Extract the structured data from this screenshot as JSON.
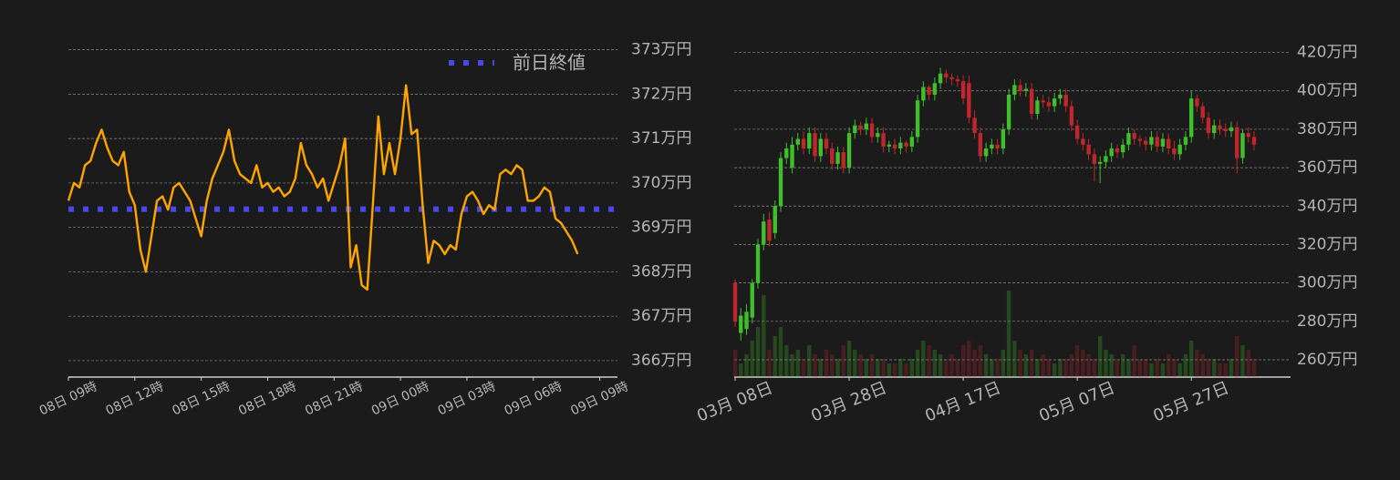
{
  "chart_data": [
    {
      "type": "line",
      "color": "#ffa500",
      "grid": true,
      "legend": "upper right",
      "x": [
        0,
        0.25,
        0.5,
        0.75,
        1,
        1.25,
        1.5,
        1.75,
        2,
        2.25,
        2.5,
        2.75,
        3,
        3.25,
        3.5,
        3.75,
        4,
        4.25,
        4.5,
        4.75,
        5,
        5.25,
        5.5,
        5.75,
        6,
        6.25,
        6.5,
        6.75,
        7,
        7.25,
        7.5,
        7.75,
        8,
        8.25,
        8.5,
        8.75,
        9,
        9.25,
        9.5,
        9.75,
        10,
        10.25,
        10.5,
        10.75,
        11,
        11.25,
        11.5,
        11.75,
        12,
        12.25,
        12.5,
        12.75,
        13,
        13.25,
        13.5,
        13.75,
        14,
        14.25,
        14.5,
        14.75,
        15,
        15.25,
        15.5,
        15.75,
        16,
        16.25,
        16.5,
        16.75,
        17,
        17.25,
        17.5,
        17.75,
        18,
        18.25,
        18.5,
        18.75,
        19,
        19.25,
        19.5,
        19.75,
        20,
        20.25,
        20.5,
        20.75,
        21,
        21.25,
        21.5,
        21.75,
        22,
        22.25,
        22.5,
        22.75,
        23
      ],
      "values": [
        369.6,
        370.0,
        369.9,
        370.4,
        370.5,
        370.9,
        371.2,
        370.8,
        370.5,
        370.4,
        370.7,
        369.8,
        369.5,
        368.5,
        368.0,
        368.8,
        369.6,
        369.7,
        369.4,
        369.9,
        370.0,
        369.8,
        369.6,
        369.2,
        368.8,
        369.6,
        370.1,
        370.4,
        370.7,
        371.2,
        370.5,
        370.2,
        370.1,
        370.0,
        370.4,
        369.9,
        370.0,
        369.8,
        369.9,
        369.7,
        369.8,
        370.1,
        370.9,
        370.4,
        370.2,
        369.9,
        370.1,
        369.6,
        370.0,
        370.4,
        371.0,
        368.1,
        368.6,
        367.7,
        367.6,
        369.5,
        371.5,
        370.2,
        370.9,
        370.2,
        371.0,
        372.2,
        371.1,
        371.2,
        369.5,
        368.2,
        368.7,
        368.6,
        368.4,
        368.6,
        368.5,
        369.3,
        369.7,
        369.8,
        369.6,
        369.3,
        369.5,
        369.4,
        370.2,
        370.3,
        370.2,
        370.4,
        370.3,
        369.6,
        369.6,
        369.7,
        369.9,
        369.8,
        369.2,
        369.1,
        368.9,
        368.7,
        368.4
      ],
      "reference_line": {
        "name": "前日終値",
        "value": 369.41,
        "color": "#4848e8"
      },
      "xlim": [
        0,
        24.8
      ],
      "xticks": [
        {
          "value": 0,
          "label": "08日 09時"
        },
        {
          "value": 3,
          "label": "08日 12時"
        },
        {
          "value": 6,
          "label": "08日 15時"
        },
        {
          "value": 9,
          "label": "08日 18時"
        },
        {
          "value": 12,
          "label": "08日 21時"
        },
        {
          "value": 15,
          "label": "09日 00時"
        },
        {
          "value": 18,
          "label": "09日 03時"
        },
        {
          "value": 21,
          "label": "09日 06時"
        },
        {
          "value": 24,
          "label": "09日 09時"
        }
      ],
      "ylim": [
        365.63,
        373.3
      ],
      "yticks": [
        {
          "value": 366,
          "label": "366万円"
        },
        {
          "value": 367,
          "label": "367万円"
        },
        {
          "value": 368,
          "label": "368万円"
        },
        {
          "value": 369,
          "label": "369万円"
        },
        {
          "value": 370,
          "label": "370万円"
        },
        {
          "value": 371,
          "label": "371万円"
        },
        {
          "value": 372,
          "label": "372万円"
        },
        {
          "value": 373,
          "label": "373万円"
        }
      ]
    },
    {
      "type": "candlestick",
      "up_color": "#3fbf2c",
      "down_color": "#c2262d",
      "grid": true,
      "x": [
        0,
        1,
        2,
        3,
        4,
        5,
        6,
        7,
        8,
        9,
        10,
        11,
        12,
        13,
        14,
        15,
        16,
        17,
        18,
        19,
        20,
        21,
        22,
        23,
        24,
        25,
        26,
        27,
        28,
        29,
        30,
        31,
        32,
        33,
        34,
        35,
        36,
        37,
        38,
        39,
        40,
        41,
        42,
        43,
        44,
        45,
        46,
        47,
        48,
        49,
        50,
        51,
        52,
        53,
        54,
        55,
        56,
        57,
        58,
        59,
        60,
        61,
        62,
        63,
        64,
        65,
        66,
        67,
        68,
        69,
        70,
        71,
        72,
        73,
        74,
        75,
        76,
        77,
        78,
        79,
        80,
        81,
        82,
        83,
        84,
        85,
        86,
        87,
        88,
        89,
        90,
        91
      ],
      "open": [
        300,
        274,
        276,
        282,
        300,
        320,
        333,
        326,
        340,
        365,
        360,
        372,
        375,
        370,
        378,
        366,
        375,
        370,
        362,
        368,
        360,
        378,
        382,
        380,
        383,
        376,
        378,
        371,
        372,
        370,
        373,
        371,
        376,
        395,
        402,
        398,
        404,
        409,
        407,
        406,
        405,
        404,
        386,
        378,
        366,
        370,
        372,
        370,
        380,
        398,
        403,
        400,
        401,
        388,
        395,
        394,
        392,
        396,
        398,
        392,
        382,
        375,
        372,
        367,
        362,
        363,
        366,
        370,
        368,
        372,
        378,
        375,
        374,
        372,
        376,
        371,
        375,
        370,
        367,
        372,
        376,
        396,
        392,
        386,
        378,
        382,
        380,
        379,
        381,
        365,
        378,
        376
      ],
      "high": [
        302,
        287,
        289,
        302,
        323,
        336,
        337,
        343,
        368,
        373,
        376,
        378,
        379,
        381,
        381,
        378,
        378,
        373,
        371,
        371,
        381,
        385,
        384,
        386,
        386,
        381,
        381,
        374,
        375,
        376,
        374,
        379,
        398,
        405,
        403,
        407,
        412,
        411,
        409,
        408,
        408,
        408,
        390,
        381,
        373,
        375,
        375,
        383,
        401,
        406,
        406,
        404,
        404,
        397,
        398,
        397,
        399,
        401,
        401,
        395,
        385,
        378,
        375,
        370,
        366,
        369,
        373,
        372,
        375,
        381,
        380,
        377,
        376,
        379,
        379,
        378,
        378,
        374,
        375,
        379,
        400,
        398,
        394,
        389,
        385,
        385,
        383,
        384,
        384,
        380,
        381,
        379
      ],
      "low": [
        277,
        270,
        273,
        279,
        297,
        317,
        319,
        323,
        337,
        362,
        357,
        369,
        367,
        367,
        363,
        363,
        367,
        359,
        359,
        357,
        357,
        375,
        377,
        377,
        373,
        373,
        368,
        368,
        367,
        367,
        368,
        368,
        373,
        392,
        395,
        395,
        401,
        404,
        403,
        402,
        393,
        383,
        375,
        363,
        363,
        367,
        367,
        367,
        377,
        395,
        397,
        397,
        385,
        385,
        391,
        389,
        389,
        393,
        389,
        379,
        372,
        369,
        364,
        353,
        352,
        360,
        363,
        365,
        365,
        369,
        372,
        371,
        369,
        369,
        368,
        368,
        367,
        364,
        364,
        369,
        373,
        389,
        383,
        375,
        375,
        377,
        376,
        376,
        357,
        362,
        373,
        369
      ],
      "close": [
        280,
        283,
        285,
        300,
        320,
        332,
        322,
        340,
        365,
        370,
        372,
        375,
        370,
        378,
        366,
        375,
        370,
        362,
        368,
        360,
        378,
        382,
        380,
        383,
        376,
        378,
        371,
        372,
        370,
        373,
        371,
        376,
        395,
        402,
        398,
        404,
        409,
        407,
        406,
        405,
        396,
        386,
        378,
        366,
        370,
        372,
        370,
        380,
        398,
        403,
        400,
        401,
        388,
        395,
        394,
        392,
        396,
        398,
        392,
        382,
        375,
        372,
        367,
        362,
        363,
        366,
        370,
        368,
        372,
        378,
        375,
        374,
        372,
        376,
        371,
        375,
        370,
        367,
        372,
        376,
        396,
        392,
        386,
        378,
        382,
        380,
        379,
        381,
        365,
        378,
        376,
        372
      ],
      "volume": [
        30,
        15,
        25,
        40,
        55,
        90,
        30,
        45,
        55,
        35,
        25,
        30,
        20,
        35,
        25,
        20,
        30,
        25,
        20,
        35,
        40,
        30,
        25,
        20,
        25,
        20,
        20,
        15,
        15,
        20,
        15,
        20,
        30,
        40,
        35,
        30,
        25,
        20,
        25,
        20,
        35,
        40,
        30,
        35,
        25,
        20,
        20,
        30,
        95,
        40,
        30,
        25,
        30,
        20,
        25,
        20,
        15,
        20,
        20,
        25,
        35,
        30,
        25,
        20,
        45,
        30,
        25,
        20,
        25,
        20,
        35,
        20,
        20,
        15,
        20,
        15,
        25,
        20,
        15,
        25,
        40,
        30,
        25,
        20,
        20,
        15,
        15,
        20,
        45,
        35,
        30,
        20
      ],
      "volume_lim": [
        0,
        100
      ],
      "xlim": [
        -0.16,
        97.4
      ],
      "xticks": [
        {
          "value": 0,
          "label": "03月 08日"
        },
        {
          "value": 20,
          "label": "03月 28日"
        },
        {
          "value": 40,
          "label": "04月 17日"
        },
        {
          "value": 60,
          "label": "05月 07日"
        },
        {
          "value": 80,
          "label": "05月 27日"
        }
      ],
      "ylim": [
        251,
        425
      ],
      "yticks": [
        {
          "value": 260,
          "label": "260万円"
        },
        {
          "value": 280,
          "label": "280万円"
        },
        {
          "value": 300,
          "label": "300万円"
        },
        {
          "value": 320,
          "label": "320万円"
        },
        {
          "value": 340,
          "label": "340万円"
        },
        {
          "value": 360,
          "label": "360万円"
        },
        {
          "value": 380,
          "label": "380万円"
        },
        {
          "value": 400,
          "label": "400万円"
        },
        {
          "value": 420,
          "label": "420万円"
        }
      ]
    }
  ]
}
